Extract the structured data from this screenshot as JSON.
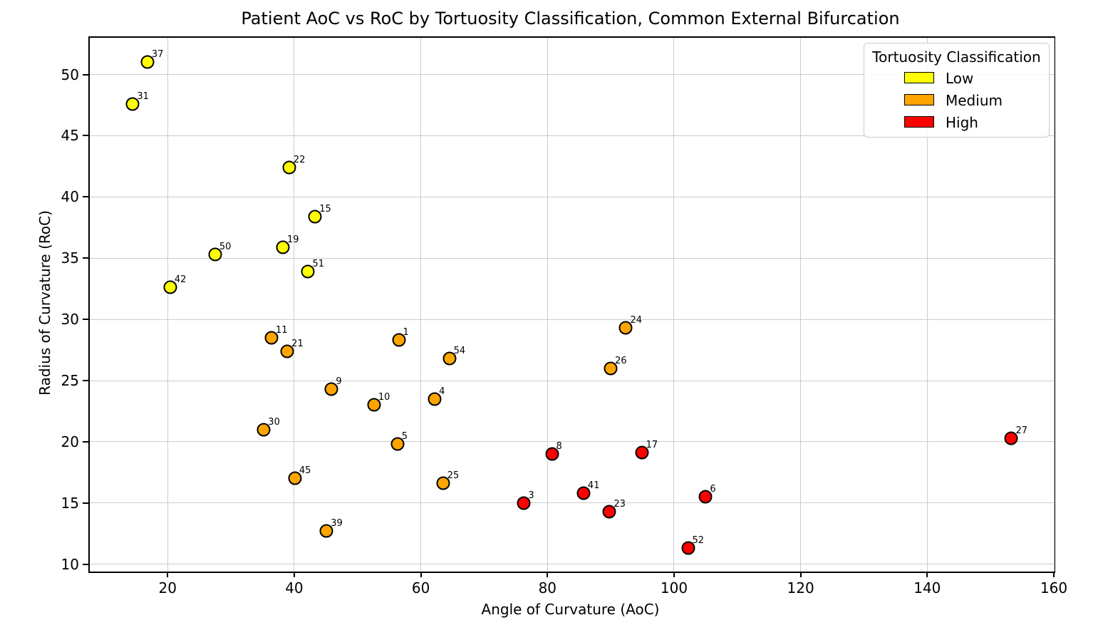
{
  "title": "Patient AoC vs RoC by Tortuosity Classification, Common External Bifurcation",
  "legend": {
    "title": "Tortuosity Classification",
    "entries": [
      {
        "label": "Low",
        "color": "#ffff00"
      },
      {
        "label": "Medium",
        "color": "#ffa500"
      },
      {
        "label": "High",
        "color": "#ff0000"
      }
    ]
  },
  "chart_data": {
    "type": "scatter",
    "title": "Patient AoC vs RoC by Tortuosity Classification, Common External Bifurcation",
    "xlabel": "Angle of Curvature (AoC)",
    "ylabel": "Radius of Curvature (RoC)",
    "xlim": [
      7.7,
      160
    ],
    "ylim": [
      9.4,
      53.0
    ],
    "xticks": [
      20,
      40,
      60,
      80,
      100,
      120,
      140,
      160
    ],
    "yticks": [
      10,
      15,
      20,
      25,
      30,
      35,
      40,
      45,
      50
    ],
    "grid": true,
    "gridcolor": "#cccccc",
    "legend_title": "Tortuosity Classification",
    "legend_position": "upper right",
    "marker_edge_color": "#000000",
    "point_labels": "patient id annotated at upper-right of each marker",
    "series": [
      {
        "name": "Low",
        "color": "#ffff00",
        "points": [
          {
            "id": "37",
            "x": 16.8,
            "y": 51.0
          },
          {
            "id": "31",
            "x": 14.5,
            "y": 47.6
          },
          {
            "id": "22",
            "x": 39.2,
            "y": 42.4
          },
          {
            "id": "15",
            "x": 43.3,
            "y": 38.4
          },
          {
            "id": "19",
            "x": 38.2,
            "y": 35.9
          },
          {
            "id": "50",
            "x": 27.5,
            "y": 35.3
          },
          {
            "id": "51",
            "x": 42.2,
            "y": 33.9
          },
          {
            "id": "42",
            "x": 20.4,
            "y": 32.6
          }
        ]
      },
      {
        "name": "Medium",
        "color": "#ffa500",
        "points": [
          {
            "id": "11",
            "x": 36.4,
            "y": 28.5
          },
          {
            "id": "21",
            "x": 38.9,
            "y": 27.4
          },
          {
            "id": "1",
            "x": 56.5,
            "y": 28.3
          },
          {
            "id": "24",
            "x": 92.4,
            "y": 29.3
          },
          {
            "id": "54",
            "x": 64.5,
            "y": 26.8
          },
          {
            "id": "26",
            "x": 90.0,
            "y": 26.0
          },
          {
            "id": "9",
            "x": 45.9,
            "y": 24.3
          },
          {
            "id": "4",
            "x": 62.2,
            "y": 23.5
          },
          {
            "id": "10",
            "x": 52.6,
            "y": 23.0
          },
          {
            "id": "30",
            "x": 35.2,
            "y": 21.0
          },
          {
            "id": "5",
            "x": 56.3,
            "y": 19.8
          },
          {
            "id": "45",
            "x": 40.1,
            "y": 17.0
          },
          {
            "id": "25",
            "x": 63.5,
            "y": 16.6
          },
          {
            "id": "39",
            "x": 45.1,
            "y": 12.7
          }
        ]
      },
      {
        "name": "High",
        "color": "#ff0000",
        "points": [
          {
            "id": "27",
            "x": 153.3,
            "y": 20.3
          },
          {
            "id": "17",
            "x": 94.9,
            "y": 19.1
          },
          {
            "id": "8",
            "x": 80.7,
            "y": 19.0
          },
          {
            "id": "41",
            "x": 85.7,
            "y": 15.8
          },
          {
            "id": "6",
            "x": 105.0,
            "y": 15.5
          },
          {
            "id": "3",
            "x": 76.3,
            "y": 15.0
          },
          {
            "id": "23",
            "x": 89.8,
            "y": 14.3
          },
          {
            "id": "52",
            "x": 102.2,
            "y": 11.3
          }
        ]
      }
    ]
  }
}
